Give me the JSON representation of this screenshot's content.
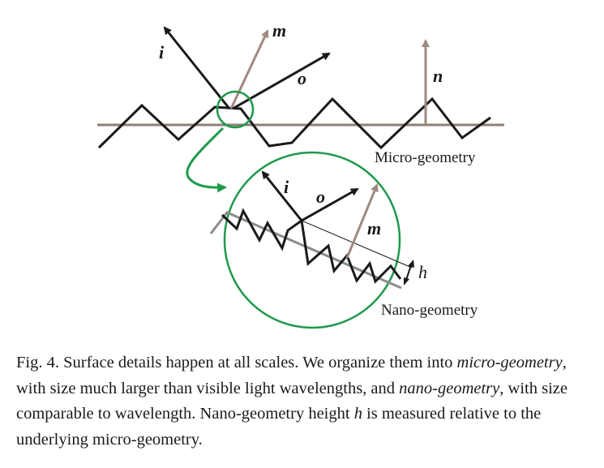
{
  "figure": {
    "colors": {
      "ink": "#1a1a1a",
      "baseline": "#8f7f76",
      "normal_arrow": "#a08a80",
      "zoom_green": "#1f9a4b",
      "nano_underline": "#8c8c8c"
    },
    "labels": {
      "i_top": "i",
      "m_top": "m",
      "o_top": "o",
      "n_top": "n",
      "micro_geometry": "Micro-geometry",
      "i_zoom": "i",
      "o_zoom": "o",
      "m_zoom": "m",
      "h": "h",
      "nano_geometry": "Nano-geometry"
    }
  },
  "caption": {
    "prefix": "Fig. 4.  Surface details happen at all scales. We organize them into ",
    "micro_em": "micro-geometry",
    "mid": ", with size much larger than visible light wavelengths, and ",
    "nano_em": "nano-geometry",
    "mid2": ", with size comparable to wavelength. Nano-geometry height ",
    "h_em": "h",
    "suffix": " is measured relative to the underlying micro-geometry."
  }
}
